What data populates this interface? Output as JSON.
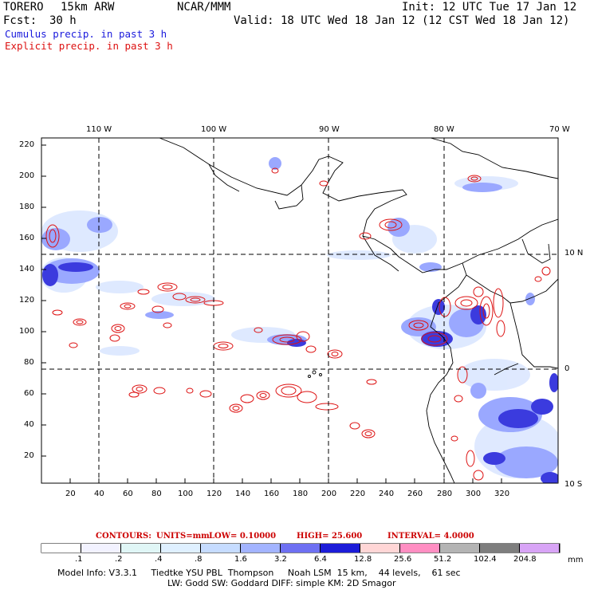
{
  "header": {
    "model": "TORERO",
    "resolution": "15km ARW",
    "center": "NCAR/MMM",
    "init": "Init: 12 UTC Tue 17 Jan 12",
    "fcst_label": "Fcst:",
    "fcst_value": "30 h",
    "valid": "Valid: 18 UTC Wed 18 Jan 12 (12 CST Wed 18 Jan 12)",
    "cumulus": "Cumulus precip. in past 3 h",
    "explicit": "Explicit precip. in past 3 h"
  },
  "map": {
    "lon_labels": [
      "110 W",
      "100 W",
      "90 W",
      "80 W",
      "70 W"
    ],
    "lat_labels": [
      "10 N",
      "0",
      "10 S"
    ],
    "y_ticks": [
      "220",
      "200",
      "180",
      "160",
      "140",
      "120",
      "100",
      "80",
      "60",
      "40",
      "20"
    ],
    "x_ticks": [
      "20",
      "40",
      "60",
      "80",
      "100",
      "120",
      "140",
      "160",
      "180",
      "200",
      "220",
      "240",
      "260",
      "280",
      "300",
      "320"
    ]
  },
  "contours": {
    "label": "CONTOURS:",
    "units": "UNITS=mm",
    "low": "LOW= 0.10000",
    "high": "HIGH= 25.600",
    "interval": "INTERVAL= 4.0000"
  },
  "colorbar": {
    "labels": [
      ".1",
      ".2",
      ".4",
      ".8",
      "1.6",
      "3.2",
      "6.4",
      "12.8",
      "25.6",
      "51.2",
      "102.4",
      "204.8"
    ],
    "unit": "mm",
    "colors": [
      "#ffffff",
      "#f2f2ff",
      "#e0f6f6",
      "#dff0ff",
      "#c6dcff",
      "#a3b4ff",
      "#6e70f2",
      "#1c1cd8",
      "#ffd6d6",
      "#ff8ec2",
      "#b4b4b4",
      "#7e7e7e",
      "#d8a4f6"
    ]
  },
  "footer": {
    "line1": "Model Info: V3.3.1     Tiedtke YSU PBL  Thompson     Noah LSM  15 km,    44 levels,    61 sec",
    "line2": "LW: Godd SW: Goddard DIFF: simple KM: 2D Smagor"
  }
}
